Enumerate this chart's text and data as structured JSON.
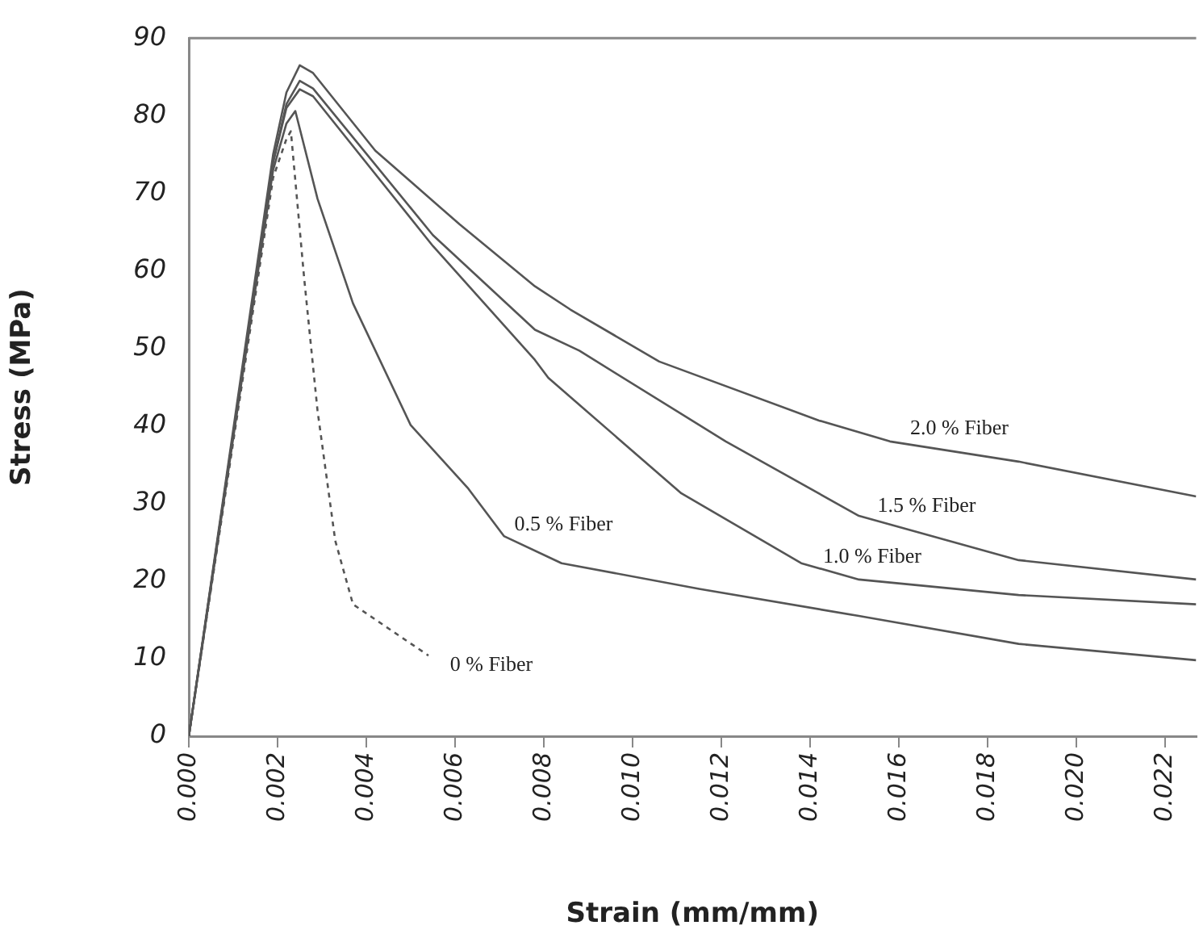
{
  "chart_data": {
    "type": "line",
    "xlabel": "Strain (mm/mm)",
    "ylabel": "Stress (MPa)",
    "xlim": [
      0,
      0.0227
    ],
    "xticks": [
      {
        "value": 0,
        "label": "0.000"
      },
      {
        "value": 0.002,
        "label": "0.002"
      },
      {
        "value": 0.004,
        "label": "0.004"
      },
      {
        "value": 0.006,
        "label": "0.006"
      },
      {
        "value": 0.008,
        "label": "0.008"
      },
      {
        "value": 0.01,
        "label": "0.010"
      },
      {
        "value": 0.012,
        "label": "0.012"
      },
      {
        "value": 0.014,
        "label": "0.014"
      },
      {
        "value": 0.016,
        "label": "0.016"
      },
      {
        "value": 0.018,
        "label": "0.018"
      },
      {
        "value": 0.02,
        "label": "0.020"
      },
      {
        "value": 0.022,
        "label": "0.022"
      }
    ],
    "ylim": [
      0,
      90
    ],
    "yticks": [
      0,
      10,
      20,
      30,
      40,
      50,
      60,
      70,
      80,
      90
    ],
    "grid": false,
    "legend": false,
    "marker": "none",
    "series": [
      {
        "name": "2.0 % Fiber",
        "color": "#555555",
        "line_style": "solid",
        "x": [
          0,
          0.0019,
          0.0022,
          0.0025,
          0.0028,
          0.0042,
          0.0061,
          0.0078,
          0.0086,
          0.0106,
          0.0142,
          0.0158,
          0.0187,
          0.0227
        ],
        "values": [
          0,
          75,
          83,
          86.5,
          85.5,
          75.5,
          66,
          58,
          55,
          48.3,
          40.7,
          38,
          35.4,
          30.9
        ]
      },
      {
        "name": "1.5 % Fiber",
        "color": "#555555",
        "line_style": "solid",
        "x": [
          0,
          0.0019,
          0.0022,
          0.0025,
          0.0028,
          0.0055,
          0.0078,
          0.0088,
          0.0121,
          0.0151,
          0.0187,
          0.0227
        ],
        "values": [
          0,
          74,
          81.5,
          84.5,
          83.5,
          64.6,
          52.4,
          49.7,
          38,
          28.4,
          22.7,
          20.2
        ]
      },
      {
        "name": "1.0 % Fiber",
        "color": "#555555",
        "line_style": "solid",
        "x": [
          0,
          0.0019,
          0.0022,
          0.0025,
          0.0028,
          0.0055,
          0.0078,
          0.0081,
          0.0111,
          0.0138,
          0.0151,
          0.0187,
          0.0227
        ],
        "values": [
          0,
          74,
          81,
          83.4,
          82.5,
          63.2,
          48.5,
          46.2,
          31.3,
          22.3,
          20.2,
          18.2,
          17
        ]
      },
      {
        "name": "0.5 % Fiber",
        "color": "#555555",
        "line_style": "solid",
        "x": [
          0,
          0.0019,
          0.0022,
          0.0024,
          0.0029,
          0.0037,
          0.005,
          0.0063,
          0.0071,
          0.0084,
          0.0115,
          0.0151,
          0.0187,
          0.0227
        ],
        "values": [
          0,
          73,
          79,
          80.6,
          69.3,
          55.8,
          40.1,
          31.9,
          25.8,
          22.3,
          19,
          15.5,
          11.9,
          9.8
        ]
      },
      {
        "name": "0 % Fiber",
        "color": "#555555",
        "line_style": "dashed",
        "x": [
          0,
          0.0019,
          0.0022,
          0.0023,
          0.0026,
          0.0029,
          0.0033,
          0.0037,
          0.0046,
          0.0054
        ],
        "values": [
          0,
          72,
          77,
          78,
          59,
          42,
          25.2,
          17,
          13.5,
          10.4
        ]
      }
    ]
  }
}
